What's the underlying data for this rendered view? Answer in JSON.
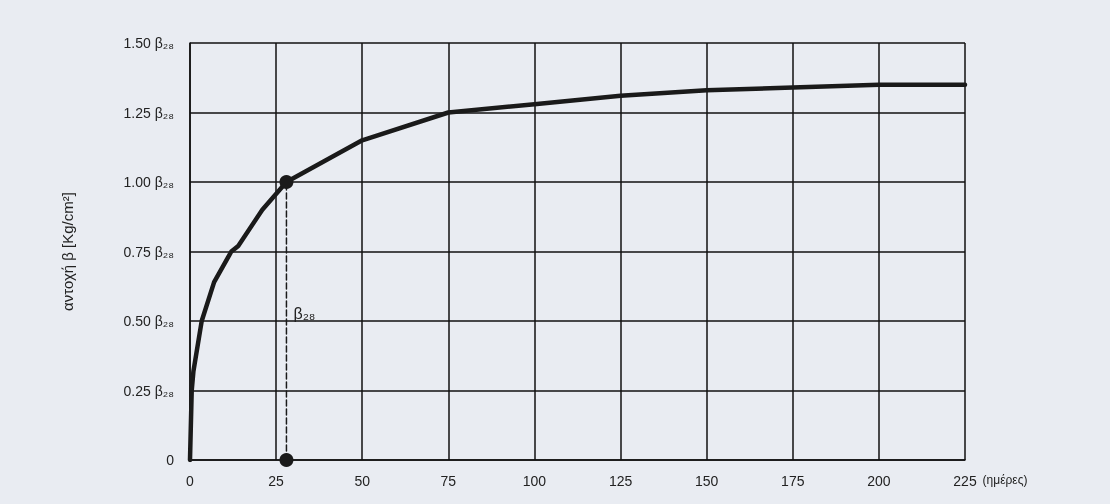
{
  "chart_data": {
    "type": "line",
    "ylabel": "αντοχή β [Kg/cm²]",
    "xlabel": "(ημέρες)",
    "xlim": [
      0,
      225
    ],
    "xticks": [
      0,
      25,
      50,
      75,
      100,
      125,
      150,
      175,
      200,
      225
    ],
    "ylim": [
      0,
      1.5
    ],
    "yticks": [
      0,
      {
        "value": 0.25,
        "label": "0.25 β₂₈"
      },
      {
        "value": 0.5,
        "label": "0.50 β₂₈"
      },
      {
        "value": 0.75,
        "label": "0.75 β₂₈"
      },
      {
        "value": 1,
        "label": "1.00 β₂₈"
      },
      {
        "value": 1.25,
        "label": "1.25 β₂₈"
      },
      {
        "value": 1.5,
        "label": "1.50 β₂₈"
      }
    ],
    "grid": true,
    "series": [
      {
        "color": "#1a1a1a",
        "marker": "none",
        "line_style": "solid",
        "x": [
          0,
          0.5,
          1,
          3.4,
          7,
          12,
          14,
          21,
          28,
          50,
          75,
          100,
          125,
          150,
          175,
          200,
          225
        ],
        "values": [
          0,
          0.25,
          0.32,
          0.5,
          0.64,
          0.75,
          0.77,
          0.9,
          1.0,
          1.15,
          1.25,
          1.28,
          1.31,
          1.33,
          1.34,
          1.35,
          1.35
        ]
      },
      {
        "color": "#1a1a1a",
        "marker": "circle",
        "line_style": "dashed",
        "x": [
          28,
          28
        ],
        "values": [
          0,
          1.0
        ]
      }
    ],
    "annotations": [
      {
        "text": "β₂₈",
        "x": 28,
        "y": 0.5
      }
    ]
  }
}
